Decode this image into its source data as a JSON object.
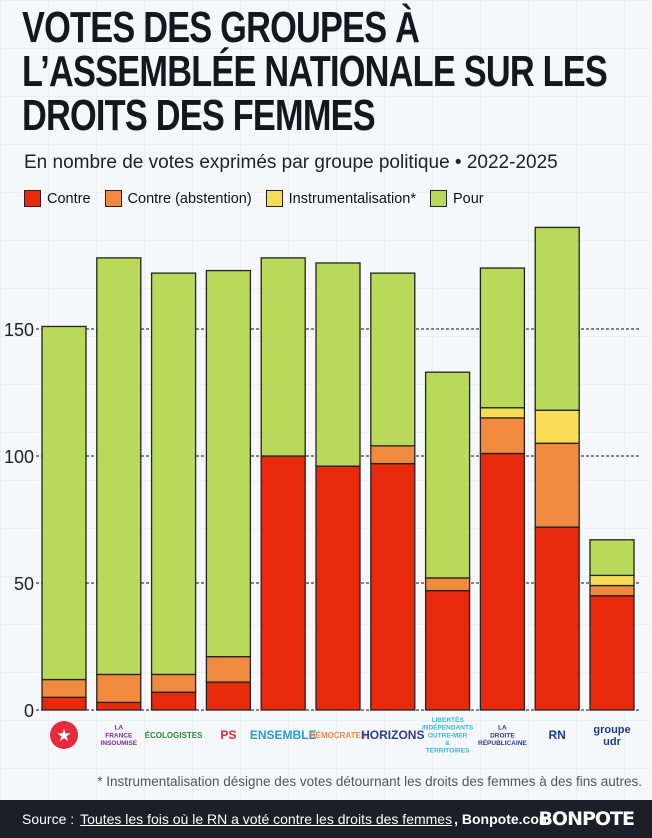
{
  "title": "VOTES DES GROUPES À L’ASSEMBLÉE NATIONALE SUR LES DROITS DES FEMMES",
  "subtitle": "En nombre de votes exprimés par groupe politique • 2022-2025",
  "footnote": "* Instrumentalisation désigne des votes détournant les droits des femmes à des fins autres.",
  "footer": {
    "source_label": "Source :",
    "link_text": "Toutes les fois où le RN a voté contre les droits des femmes",
    "site": ", Bonpote.com",
    "brand": "BONPOTE"
  },
  "chart_data": {
    "type": "bar",
    "stacked": true,
    "ylim": [
      0,
      195
    ],
    "yticks": [
      0,
      50,
      100,
      150
    ],
    "grid": "dashed horizontal at ticks",
    "legend": "top-left",
    "categories": [
      "GDR",
      "La France Insoumise",
      "Écologistes",
      "Socialistes",
      "Ensemble pour la République",
      "Les Démocrates",
      "Horizons & Indépendants",
      "LIOT",
      "Droite Républicaine",
      "Rassemblement National",
      "UDR"
    ],
    "logo_text": [
      "★",
      "LA FRANCE INSOUMISE",
      "ÉCOLOGISTES",
      "PS",
      "ENSEMBLE",
      "DÉMOCRATES",
      "HORIZONS",
      "LIBERTÉS INDÉPENDANTS OUTRE-MER & TERRITOIRES",
      "LA DROITE RÉPUBLICAINE",
      "RN",
      "groupe udr"
    ],
    "series": [
      {
        "name": "Contre",
        "color": "#e8290b",
        "values": [
          5,
          3,
          7,
          11,
          100,
          96,
          97,
          47,
          101,
          72,
          45
        ]
      },
      {
        "name": "Contre (abstention)",
        "color": "#ef8a3f",
        "values": [
          7,
          11,
          7,
          10,
          0,
          0,
          7,
          5,
          14,
          33,
          4
        ]
      },
      {
        "name": "Instrumentalisation*",
        "color": "#f6dd55",
        "values": [
          0,
          0,
          0,
          0,
          0,
          0,
          0,
          0,
          4,
          13,
          4
        ]
      },
      {
        "name": "Pour",
        "color": "#b8d95a",
        "values": [
          139,
          164,
          158,
          152,
          78,
          80,
          68,
          81,
          55,
          72,
          14
        ]
      }
    ]
  }
}
